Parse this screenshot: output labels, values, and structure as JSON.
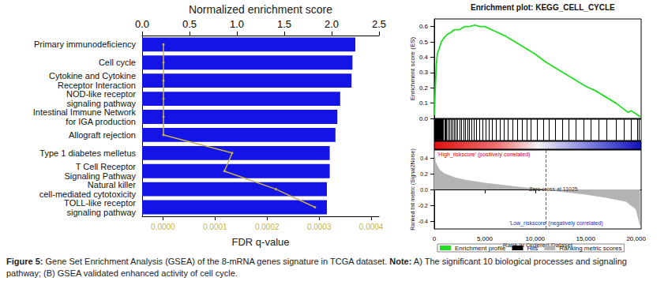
{
  "chart_data": [
    {
      "type": "bar",
      "orientation": "horizontal",
      "categories": [
        "Primary immunodeficiency",
        "Cell cycle",
        "Cytokine and Cytokine\nReceptor Interaction",
        "NOD-like receptor\nsignaling pathway",
        "Intestinal Immune Network\nfor IGA production",
        "Allograft rejection",
        "Type 1 diabetes melletus",
        "T Cell Receptor\nSignaling Pathway",
        "Natural killer\ncell-mediated cytotoxicity",
        "TOLL-like receptor\nsignaling pathway"
      ],
      "xlabel": "Normalized enrichment score",
      "xlim": [
        0,
        2.5
      ],
      "xticks": [
        {
          "value": 0,
          "label": "0.0"
        },
        0.5,
        {
          "value": 1,
          "label": "1.0"
        },
        1.5,
        {
          "value": 2,
          "label": "2.0"
        },
        2.5
      ],
      "x2label": "FDR q-value",
      "x2lim": [
        -4e-05,
        0.000415
      ],
      "x2ticks": [
        {
          "value": 0,
          "label": "0.0000"
        },
        {
          "value": 0.0001,
          "label": "0.0001"
        },
        {
          "value": 0.0002,
          "label": "0.0002"
        },
        {
          "value": 0.0003,
          "label": "0.0003"
        },
        {
          "value": 0.0004,
          "label": "0.0004"
        }
      ],
      "grid": false,
      "series": [
        {
          "type": "bar",
          "color": "#1414e6",
          "values": [
            2.25,
            2.22,
            2.21,
            2.09,
            2.06,
            2.04,
            1.98,
            1.98,
            1.95,
            1.95
          ]
        },
        {
          "type": "line",
          "axis": "x2",
          "color": "#c8b44a",
          "marker": "circle",
          "values": [
            1e-06,
            1e-06,
            1e-06,
            1e-06,
            1e-06,
            1e-06,
            0.000133,
            0.000118,
            0.000217,
            0.000292
          ]
        }
      ]
    },
    {
      "type": "line",
      "title": "Enrichment plot: KEGG_CELL_CYCLE",
      "ylabel": "Enrichment score (ES)",
      "ylim": [
        0,
        0.65
      ],
      "yticks": [
        {
          "value": 0,
          "label": "0.0"
        },
        0.1,
        0.2,
        0.3,
        0.4,
        0.5,
        0.6
      ],
      "y2label": "Ranked list metric (Signal2Noise)",
      "y2lim": [
        -0.5,
        0.5
      ],
      "y2ticks": [
        -0.4,
        -0.2,
        {
          "value": 0,
          "label": "0.0"
        },
        0.2,
        0.4
      ],
      "xlabel": "Rank in Ordered Dataset",
      "xlim": [
        0,
        20500
      ],
      "xticks": [
        0,
        {
          "value": 5000,
          "label": "5,000"
        },
        {
          "value": 10000,
          "label": "10,000"
        },
        {
          "value": 15000,
          "label": "15,000"
        },
        {
          "value": 20000,
          "label": "20,000"
        }
      ],
      "grid": false,
      "legend": "bottom",
      "zero_cross": 11025,
      "annotations": [
        {
          "text": "'High_riskscore' (positively correlated)",
          "color": "#d00000"
        },
        {
          "text": "Zero cross at 11025",
          "color": "#333333"
        },
        {
          "text": "'Low_riskscore' (negatively correlated)",
          "color": "#1030c0"
        }
      ],
      "series": [
        {
          "name": "Enrichment profile",
          "type": "line",
          "color": "#22dd22",
          "x": [
            0,
            50,
            100,
            200,
            300,
            500,
            700,
            1000,
            1300,
            1600,
            2000,
            2500,
            3000,
            3500,
            4000,
            4500,
            5000,
            6000,
            7000,
            8000,
            9000,
            10000,
            11000,
            12000,
            13000,
            14000,
            15000,
            16000,
            17000,
            18000,
            18800,
            19200,
            19500,
            20000,
            20400
          ],
          "values": [
            0.02,
            0.1,
            0.2,
            0.35,
            0.42,
            0.46,
            0.5,
            0.53,
            0.55,
            0.56,
            0.58,
            0.58,
            0.6,
            0.6,
            0.61,
            0.6,
            0.6,
            0.57,
            0.54,
            0.5,
            0.46,
            0.42,
            0.37,
            0.33,
            0.29,
            0.25,
            0.21,
            0.18,
            0.14,
            0.1,
            0.06,
            0.04,
            0.05,
            0.03,
            0.01
          ]
        },
        {
          "name": "Hits",
          "type": "hits",
          "color": "#000000",
          "x": [
            30,
            80,
            150,
            200,
            260,
            330,
            400,
            470,
            560,
            650,
            720,
            800,
            900,
            1000,
            1100,
            1200,
            1350,
            1500,
            1650,
            1800,
            1950,
            2100,
            2300,
            2500,
            2700,
            2900,
            3100,
            3300,
            3500,
            3700,
            3950,
            4200,
            4500,
            4800,
            5100,
            5400,
            5700,
            6100,
            6500,
            6900,
            7300,
            7800,
            8200,
            8700,
            9200,
            9600,
            10200,
            10800,
            11400,
            12000,
            12700,
            13300,
            14000,
            14800,
            15500,
            16300,
            17100,
            18000,
            18800,
            19500,
            20100,
            20300
          ]
        },
        {
          "name": "Ranking metric scores",
          "type": "area",
          "axis": "y2",
          "color": "#b4b4b4",
          "x": [
            0,
            100,
            500,
            1000,
            2000,
            3000,
            5000,
            7000,
            9000,
            11025,
            13000,
            15000,
            17000,
            19000,
            20000,
            20400
          ],
          "values": [
            0.5,
            0.35,
            0.25,
            0.2,
            0.15,
            0.12,
            0.08,
            0.05,
            0.02,
            0,
            -0.03,
            -0.06,
            -0.1,
            -0.15,
            -0.25,
            -0.45
          ]
        }
      ]
    }
  ],
  "caption": {
    "label": "Figure 5:",
    "text": "Gene Set Enrichment Analysis (GSEA) of the 8-mRNA genes signature in TCGA dataset.",
    "note_label": "Note:",
    "note": "A) The significant 10 biological processes and signaling pathway; (B) GSEA validated enhanced activity of cell cycle."
  }
}
